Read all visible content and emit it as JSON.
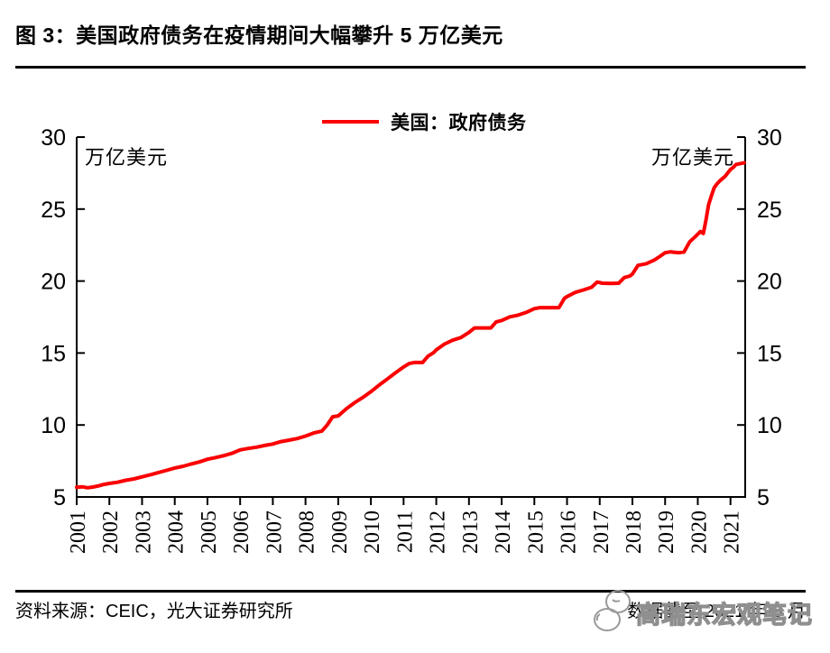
{
  "title": "图 3：美国政府债务在疫情期间大幅攀升 5 万亿美元",
  "footer": {
    "source": "资料来源：CEIC，光大证券研究所",
    "cutoff": "数据截至 2021 年 5 月"
  },
  "watermark": {
    "text": "高瑞东宏观笔记",
    "icon": "mascot-doodle-icon"
  },
  "colors": {
    "line": "#fa0000",
    "axis": "#000000",
    "watermark": "#8f8f8f"
  },
  "chart_data": {
    "type": "line",
    "legend": {
      "label": "美国：政府债务",
      "position": "top-center"
    },
    "ylabel_left": "万亿美元",
    "ylabel_right": "万亿美元",
    "ylim": [
      5,
      30
    ],
    "y_ticks": [
      5,
      10,
      15,
      20,
      25,
      30
    ],
    "xlim": [
      2001,
      2021.45
    ],
    "x_ticklabels": [
      "2001",
      "2002",
      "2003",
      "2004",
      "2005",
      "2006",
      "2007",
      "2008",
      "2009",
      "2010",
      "2011",
      "2012",
      "2013",
      "2014",
      "2015",
      "2016",
      "2017",
      "2018",
      "2019",
      "2020",
      "2021"
    ],
    "grid": false,
    "series": [
      {
        "name": "美国：政府债务",
        "color": "#fa0000",
        "points": [
          [
            2001.0,
            5.67
          ],
          [
            2001.17,
            5.71
          ],
          [
            2001.33,
            5.64
          ],
          [
            2001.5,
            5.69
          ],
          [
            2001.67,
            5.77
          ],
          [
            2001.83,
            5.87
          ],
          [
            2002.0,
            5.94
          ],
          [
            2002.25,
            6.02
          ],
          [
            2002.5,
            6.16
          ],
          [
            2002.75,
            6.25
          ],
          [
            2003.0,
            6.4
          ],
          [
            2003.25,
            6.54
          ],
          [
            2003.5,
            6.7
          ],
          [
            2003.75,
            6.85
          ],
          [
            2004.0,
            7.01
          ],
          [
            2004.25,
            7.13
          ],
          [
            2004.5,
            7.29
          ],
          [
            2004.75,
            7.43
          ],
          [
            2005.0,
            7.62
          ],
          [
            2005.25,
            7.74
          ],
          [
            2005.5,
            7.87
          ],
          [
            2005.75,
            8.03
          ],
          [
            2006.0,
            8.27
          ],
          [
            2006.25,
            8.37
          ],
          [
            2006.5,
            8.46
          ],
          [
            2006.75,
            8.58
          ],
          [
            2007.0,
            8.68
          ],
          [
            2007.25,
            8.85
          ],
          [
            2007.5,
            8.95
          ],
          [
            2007.75,
            9.06
          ],
          [
            2008.0,
            9.23
          ],
          [
            2008.25,
            9.44
          ],
          [
            2008.5,
            9.58
          ],
          [
            2008.67,
            10.02
          ],
          [
            2008.83,
            10.57
          ],
          [
            2009.0,
            10.63
          ],
          [
            2009.25,
            11.13
          ],
          [
            2009.5,
            11.55
          ],
          [
            2009.75,
            11.91
          ],
          [
            2010.0,
            12.31
          ],
          [
            2010.25,
            12.77
          ],
          [
            2010.5,
            13.19
          ],
          [
            2010.75,
            13.62
          ],
          [
            2011.0,
            14.03
          ],
          [
            2011.17,
            14.27
          ],
          [
            2011.33,
            14.34
          ],
          [
            2011.58,
            14.34
          ],
          [
            2011.75,
            14.79
          ],
          [
            2011.92,
            15.03
          ],
          [
            2012.0,
            15.22
          ],
          [
            2012.25,
            15.62
          ],
          [
            2012.5,
            15.89
          ],
          [
            2012.75,
            16.07
          ],
          [
            2013.0,
            16.43
          ],
          [
            2013.17,
            16.74
          ],
          [
            2013.42,
            16.74
          ],
          [
            2013.67,
            16.74
          ],
          [
            2013.83,
            17.16
          ],
          [
            2014.0,
            17.26
          ],
          [
            2014.25,
            17.51
          ],
          [
            2014.5,
            17.63
          ],
          [
            2014.75,
            17.82
          ],
          [
            2015.0,
            18.08
          ],
          [
            2015.17,
            18.15
          ],
          [
            2015.5,
            18.15
          ],
          [
            2015.75,
            18.15
          ],
          [
            2015.92,
            18.8
          ],
          [
            2016.0,
            18.92
          ],
          [
            2016.25,
            19.21
          ],
          [
            2016.5,
            19.38
          ],
          [
            2016.75,
            19.57
          ],
          [
            2016.92,
            19.93
          ],
          [
            2017.08,
            19.85
          ],
          [
            2017.33,
            19.83
          ],
          [
            2017.58,
            19.85
          ],
          [
            2017.75,
            20.24
          ],
          [
            2017.92,
            20.35
          ],
          [
            2018.0,
            20.49
          ],
          [
            2018.17,
            21.09
          ],
          [
            2018.42,
            21.2
          ],
          [
            2018.67,
            21.46
          ],
          [
            2018.83,
            21.7
          ],
          [
            2019.0,
            21.97
          ],
          [
            2019.17,
            22.03
          ],
          [
            2019.42,
            21.97
          ],
          [
            2019.58,
            22.02
          ],
          [
            2019.75,
            22.72
          ],
          [
            2019.92,
            23.08
          ],
          [
            2020.08,
            23.44
          ],
          [
            2020.17,
            23.31
          ],
          [
            2020.25,
            24.22
          ],
          [
            2020.33,
            25.3
          ],
          [
            2020.42,
            25.95
          ],
          [
            2020.5,
            26.48
          ],
          [
            2020.58,
            26.73
          ],
          [
            2020.67,
            26.95
          ],
          [
            2020.83,
            27.26
          ],
          [
            2021.0,
            27.75
          ],
          [
            2021.08,
            27.88
          ],
          [
            2021.17,
            28.1
          ],
          [
            2021.33,
            28.17
          ],
          [
            2021.42,
            28.22
          ]
        ]
      }
    ]
  }
}
